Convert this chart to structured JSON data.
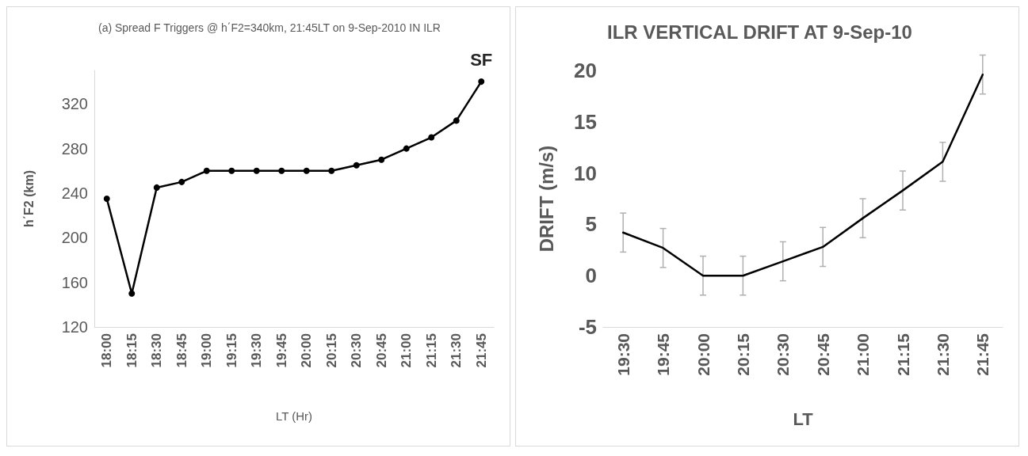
{
  "chart_data": [
    {
      "type": "line",
      "title": "(a) Spread F Triggers @ h΄F2=340km, 21:45LT on 9-Sep-2010 IN ILR",
      "xlabel": "LT (Hr)",
      "ylabel": "h΄F2 (km)",
      "categories": [
        "18:00",
        "18:15",
        "18:30",
        "18:45",
        "19:00",
        "19:15",
        "19:30",
        "19:45",
        "20:00",
        "20:15",
        "20:30",
        "20:45",
        "21:00",
        "21:15",
        "21:30",
        "21:45"
      ],
      "series": [
        {
          "color": "#000000",
          "values": [
            235,
            150,
            245,
            250,
            260,
            260,
            260,
            260,
            260,
            260,
            265,
            270,
            280,
            290,
            305,
            340
          ]
        }
      ],
      "ylim": [
        120,
        350
      ],
      "yticks": [
        120,
        160,
        200,
        240,
        280,
        320
      ],
      "grid": false,
      "marker": "circle",
      "line_style": "solid",
      "annotations": [
        {
          "text": "SF",
          "x": "21:45",
          "y": 340
        }
      ]
    },
    {
      "type": "line",
      "title": "ILR VERTICAL DRIFT AT 9-Sep-10",
      "xlabel": "LT",
      "ylabel": "DRIFT (m/s)",
      "categories": [
        "19:30",
        "19:45",
        "20:00",
        "20:15",
        "20:30",
        "20:45",
        "21:00",
        "21:15",
        "21:30",
        "21:45"
      ],
      "series": [
        {
          "color": "#000000",
          "values": [
            4.2,
            2.7,
            0,
            0,
            1.4,
            2.8,
            5.6,
            8.3,
            11.1,
            19.6
          ],
          "errors": [
            1.9,
            1.9,
            1.9,
            1.9,
            1.9,
            1.9,
            1.9,
            1.9,
            1.9,
            1.9
          ]
        }
      ],
      "ylim": [
        -5,
        20
      ],
      "yticks": [
        -5,
        0,
        5,
        10,
        15,
        20
      ],
      "grid": false,
      "marker": "none",
      "line_style": "solid"
    }
  ]
}
